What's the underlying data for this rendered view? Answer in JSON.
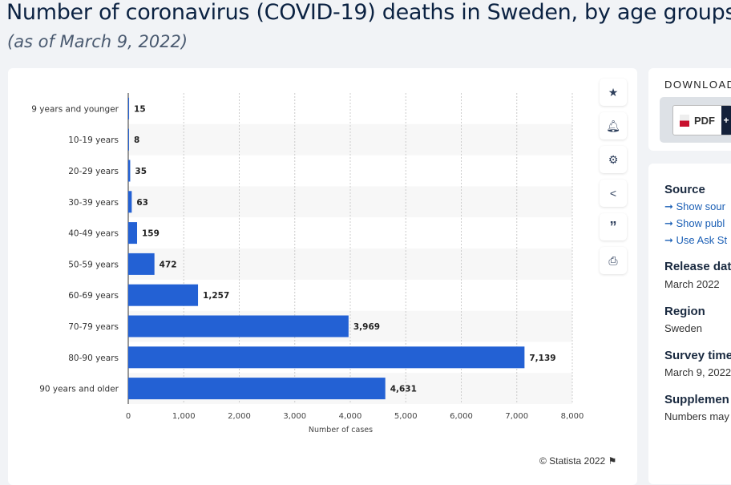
{
  "header": {
    "title": "Number of coronavirus (COVID-19) deaths in Sweden, by age groups",
    "subtitle": "(as of March 9, 2022)"
  },
  "tools": [
    {
      "icon": "star-icon"
    },
    {
      "icon": "bell-icon"
    },
    {
      "icon": "gear-icon"
    },
    {
      "icon": "share-icon"
    },
    {
      "icon": "quote-icon"
    },
    {
      "icon": "print-icon"
    }
  ],
  "footer": {
    "copyright": "© Statista 2022"
  },
  "download": {
    "title": "DOWNLOAD",
    "pdf_label": "PDF",
    "plus": "+"
  },
  "info": {
    "source_title": "Source",
    "links": [
      "Show sour",
      "Show publ",
      "Use Ask St"
    ],
    "release_title": "Release dat",
    "release_value": "March 2022",
    "region_title": "Region",
    "region_value": "Sweden",
    "survey_title": "Survey time",
    "survey_value": "March 9, 2022",
    "supp_title": "Supplemen",
    "supp_value": "Numbers may"
  },
  "chart_data": {
    "type": "bar",
    "orientation": "horizontal",
    "categories": [
      "9 years and younger",
      "10-19 years",
      "20-29 years",
      "30-39 years",
      "40-49 years",
      "50-59 years",
      "60-69 years",
      "70-79 years",
      "80-90 years",
      "90 years and older"
    ],
    "values": [
      15,
      8,
      35,
      63,
      159,
      472,
      1257,
      3969,
      7139,
      4631
    ],
    "data_labels": [
      "15",
      "8",
      "35",
      "63",
      "159",
      "472",
      "1,257",
      "3,969",
      "7,139",
      "4,631"
    ],
    "xlabel": "Number of cases",
    "xlim": [
      0,
      8000
    ],
    "xticks": [
      "0",
      "1,000",
      "2,000",
      "3,000",
      "4,000",
      "5,000",
      "6,000",
      "7,000",
      "8,000"
    ],
    "grid": true,
    "bar_color": "#2361d4"
  }
}
